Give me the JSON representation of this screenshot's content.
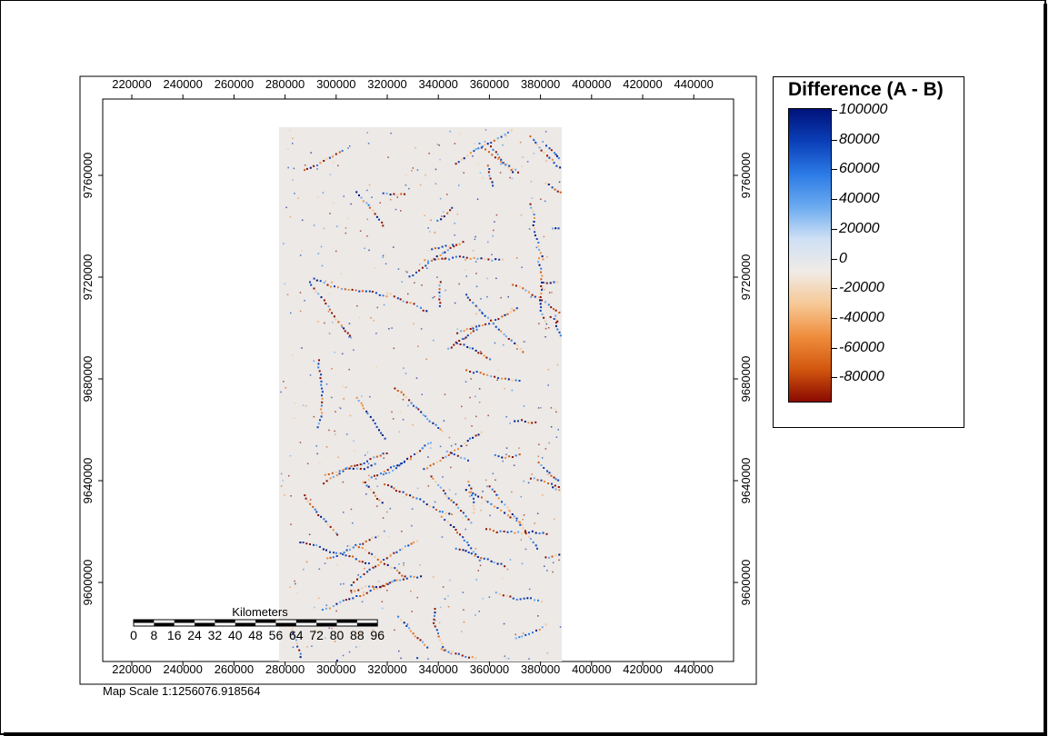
{
  "map": {
    "x_ticks": [
      "220000",
      "240000",
      "260000",
      "280000",
      "300000",
      "320000",
      "340000",
      "360000",
      "380000",
      "400000",
      "420000",
      "440000"
    ],
    "y_ticks": [
      "9760000",
      "9720000",
      "9680000",
      "9640000",
      "9600000"
    ],
    "raster_background": "#ece9e6"
  },
  "legend": {
    "title": "Difference (A - B)",
    "labels": [
      "100000",
      "80000",
      "60000",
      "40000",
      "20000",
      "0",
      "-20000",
      "-40000",
      "-60000",
      "-80000"
    ],
    "ramp_colors": [
      "#00127a",
      "#0b3fb8",
      "#2b7ae6",
      "#6aaaf0",
      "#cfe0f5",
      "#f0ebe6",
      "#f6c896",
      "#ef8d3c",
      "#d2570f",
      "#8a0a00"
    ]
  },
  "scale_bar": {
    "unit_label": "Kilometers",
    "labels": [
      "0",
      "8",
      "16",
      "24",
      "32",
      "40",
      "48",
      "56",
      "64",
      "72",
      "80",
      "88",
      "96"
    ]
  },
  "map_scale_text": "Map Scale 1:1256076.918564"
}
